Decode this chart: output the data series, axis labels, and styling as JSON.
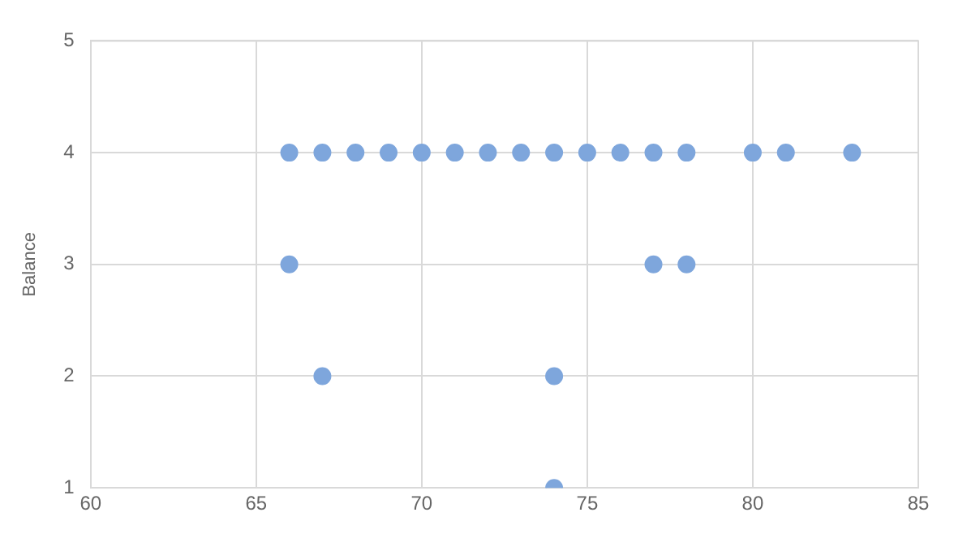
{
  "chart_data": {
    "type": "scatter",
    "ylabel": "Balance",
    "series": [
      {
        "color": "#7ea6dc",
        "x": [
          66,
          67,
          68,
          69,
          70,
          71,
          72,
          73,
          74,
          75,
          76,
          77,
          78,
          80,
          81,
          83,
          66,
          77,
          78,
          67,
          74,
          74
        ],
        "values": [
          4,
          4,
          4,
          4,
          4,
          4,
          4,
          4,
          4,
          4,
          4,
          4,
          4,
          4,
          4,
          4,
          3,
          3,
          3,
          2,
          2,
          1
        ]
      }
    ],
    "xlim": [
      60,
      85
    ],
    "xticks": [
      60,
      65,
      70,
      75,
      80,
      85
    ],
    "ylim": [
      1,
      5
    ],
    "yticks": [
      1,
      2,
      3,
      4,
      5
    ],
    "grid": true,
    "marker": "circle",
    "legend": false
  }
}
